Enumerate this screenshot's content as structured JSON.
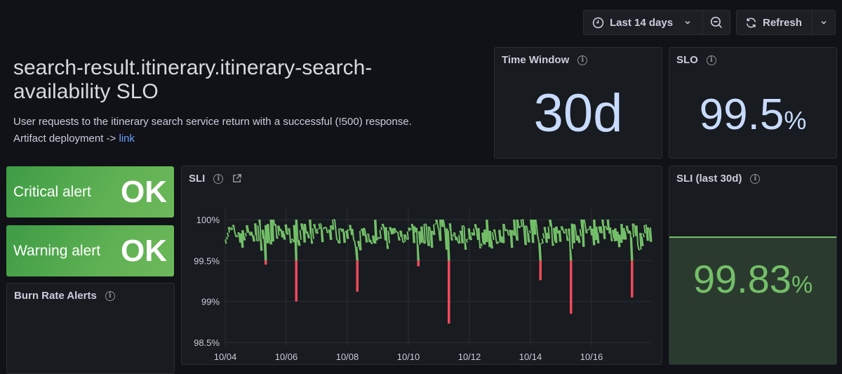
{
  "toolbar": {
    "time_range_label": "Last 14 days",
    "refresh_label": "Refresh"
  },
  "header": {
    "title": "search-result.itinerary.itinerary-search-availability SLO",
    "title_line1": "search-result.itinerary.itinerary-search-",
    "title_line2": "availability SLO",
    "description": "User requests to the itinerary search service return with a successful (!500) response.",
    "artifact_prefix": "Artifact deployment ->",
    "artifact_link": "link"
  },
  "panels": {
    "time_window": {
      "title": "Time Window",
      "value": "30d"
    },
    "slo": {
      "title": "SLO",
      "value": "99.5",
      "unit": "%"
    },
    "critical_alert": {
      "label": "Critical alert",
      "value": "OK"
    },
    "warning_alert": {
      "label": "Warning alert",
      "value": "OK"
    },
    "burn_rate": {
      "title": "Burn Rate Alerts"
    },
    "sli": {
      "title": "SLI"
    },
    "sli_30d": {
      "title": "SLI (last 30d)",
      "value": "99.83",
      "unit": "%"
    }
  },
  "colors": {
    "ok_green": "#5fb153",
    "series_green": "#73bf69",
    "series_red": "#f2495c",
    "stat_blue": "#c8dbff",
    "sli_bg": "#2b3a2e"
  },
  "chart_data": {
    "type": "line",
    "title": "SLI",
    "xlabel": "",
    "ylabel": "",
    "x_tick_labels": [
      "10/04",
      "10/06",
      "10/08",
      "10/10",
      "10/12",
      "10/14",
      "10/16"
    ],
    "y_tick_labels": [
      "100%",
      "99.5%",
      "99%",
      "98.5%"
    ],
    "ylim": [
      98.5,
      100
    ],
    "threshold": 99.5,
    "grid": true,
    "legend": "none",
    "baseline_range": [
      99.6,
      100
    ],
    "dips": [
      {
        "date": "10/05",
        "min": 99.45
      },
      {
        "date": "10/06",
        "min": 99.0
      },
      {
        "date": "10/08",
        "min": 99.12
      },
      {
        "date": "10/10",
        "min": 99.43
      },
      {
        "date": "10/11",
        "min": 98.73
      },
      {
        "date": "10/14",
        "min": 99.26
      },
      {
        "date": "10/15",
        "min": 98.85
      },
      {
        "date": "10/17",
        "min": 99.05
      }
    ]
  }
}
